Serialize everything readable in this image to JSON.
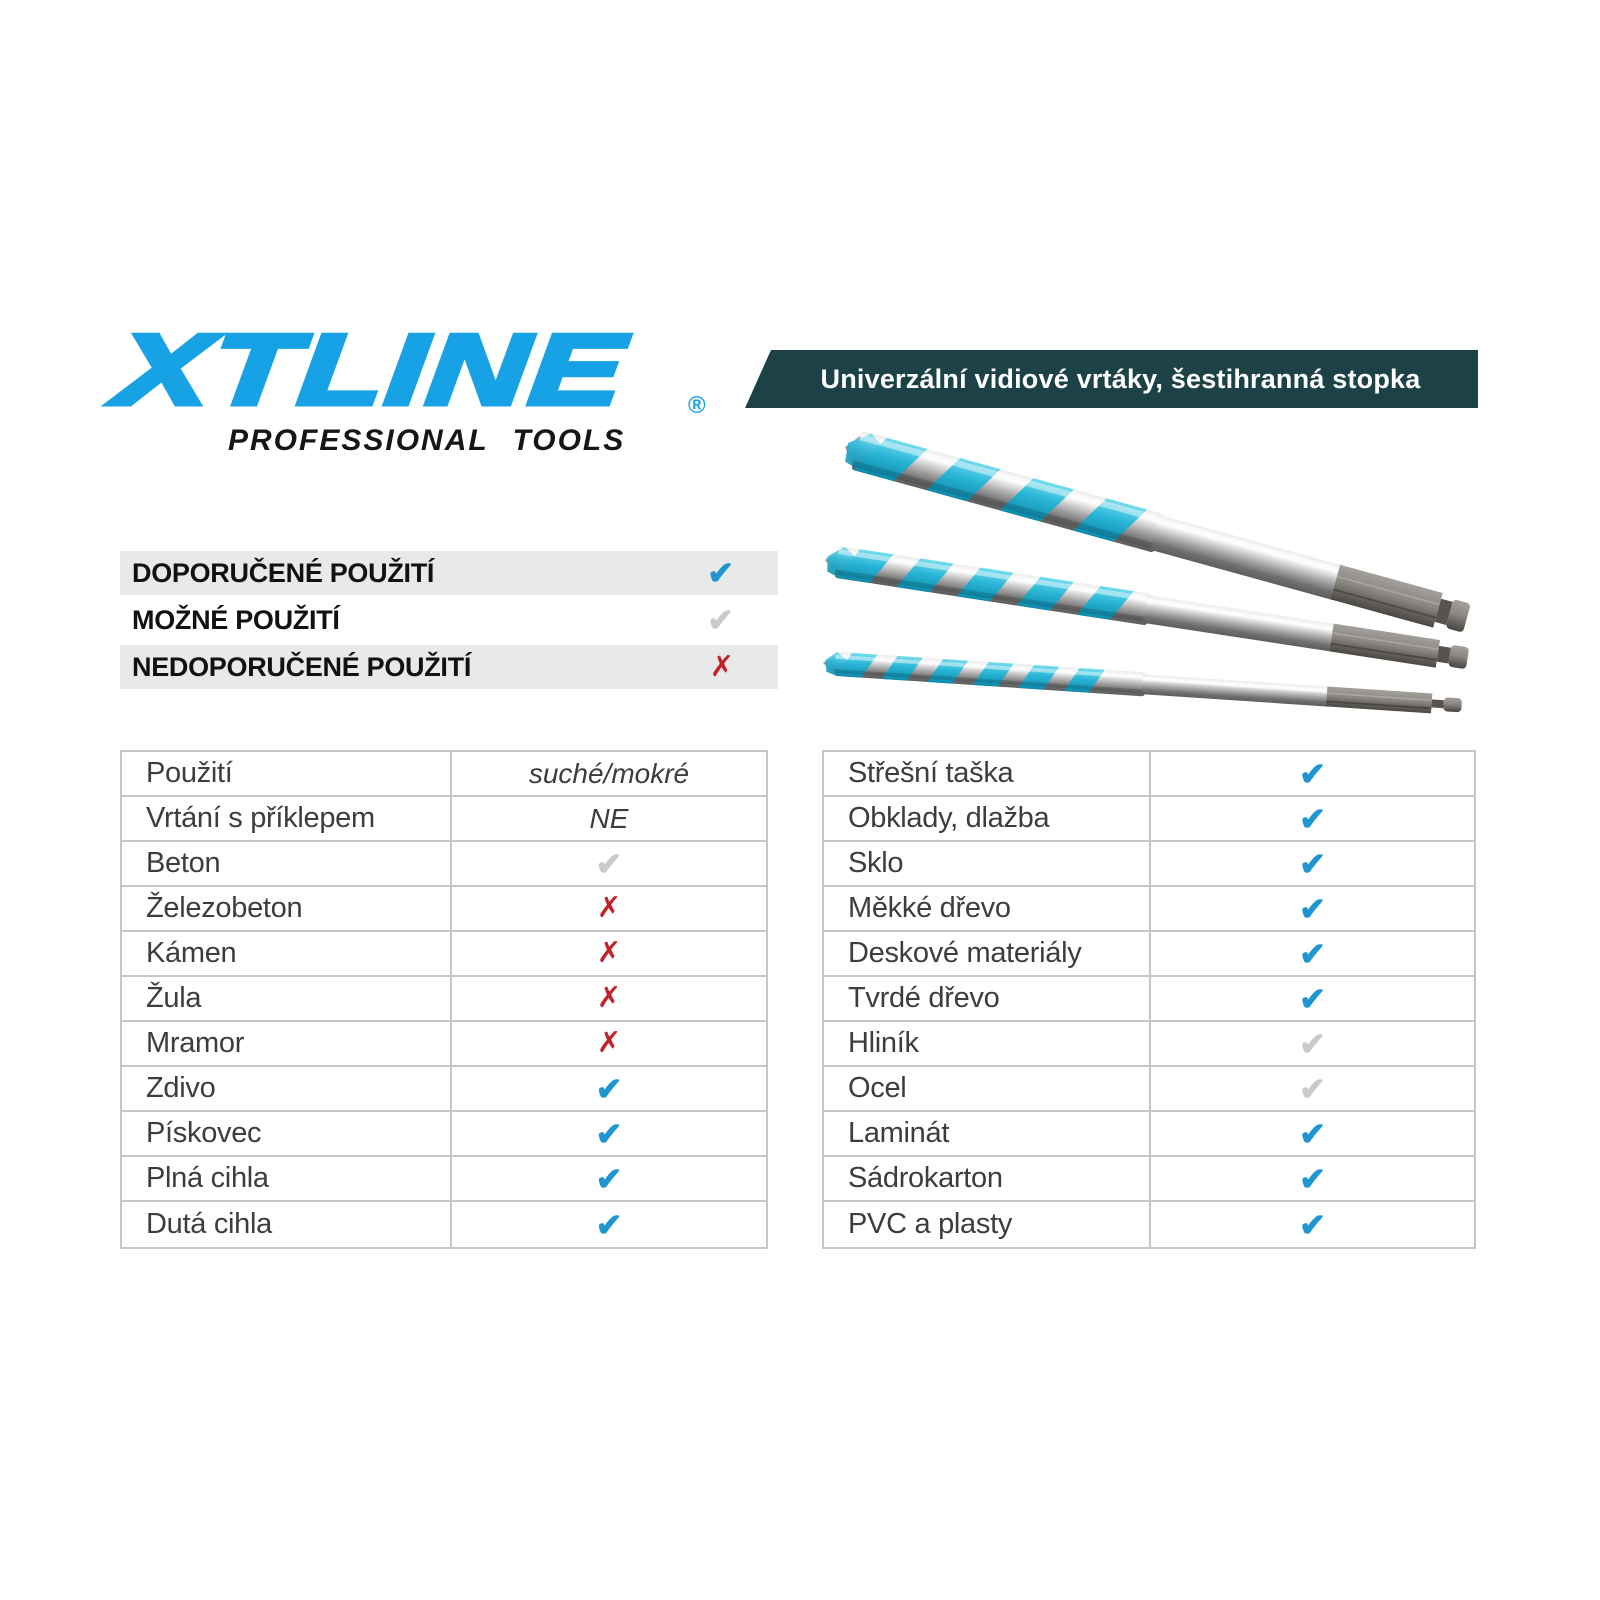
{
  "brand": {
    "logo_text": "XTLINE",
    "registered_mark": "®",
    "tagline": "PROFESSIONAL TOOLS"
  },
  "banner": {
    "title": "Univerzální vidiové vrtáky, šestihranná stopka"
  },
  "legend": {
    "items": [
      {
        "label": "DOPORUČENÉ POUŽITÍ",
        "mark": "blue"
      },
      {
        "label": "MOŽNÉ POUŽITÍ",
        "mark": "gray"
      },
      {
        "label": "NEDOPORUČENÉ POUŽITÍ",
        "mark": "red"
      }
    ]
  },
  "marks": {
    "check_glyph": "✔",
    "cross_glyph": "✗"
  },
  "tables": {
    "left": {
      "rows": [
        {
          "label": "Použití",
          "value": "suché/mokré"
        },
        {
          "label": "Vrtání s příklepem",
          "value": "NE"
        },
        {
          "label": "Beton",
          "mark": "gray"
        },
        {
          "label": "Železobeton",
          "mark": "red"
        },
        {
          "label": "Kámen",
          "mark": "red"
        },
        {
          "label": "Žula",
          "mark": "red"
        },
        {
          "label": "Mramor",
          "mark": "red"
        },
        {
          "label": "Zdivo",
          "mark": "blue"
        },
        {
          "label": "Pískovec",
          "mark": "blue"
        },
        {
          "label": "Plná cihla",
          "mark": "blue"
        },
        {
          "label": "Dutá cihla",
          "mark": "blue"
        }
      ]
    },
    "right": {
      "rows": [
        {
          "label": "Střešní taška",
          "mark": "blue"
        },
        {
          "label": "Obklady, dlažba",
          "mark": "blue"
        },
        {
          "label": "Sklo",
          "mark": "blue"
        },
        {
          "label": "Měkké dřevo",
          "mark": "blue"
        },
        {
          "label": "Deskové materiály",
          "mark": "blue"
        },
        {
          "label": "Tvrdé dřevo",
          "mark": "blue"
        },
        {
          "label": "Hliník",
          "mark": "gray"
        },
        {
          "label": "Ocel",
          "mark": "gray"
        },
        {
          "label": "Laminát",
          "mark": "blue"
        },
        {
          "label": "Sádrokarton",
          "mark": "blue"
        },
        {
          "label": "PVC a plasty",
          "mark": "blue"
        }
      ]
    }
  },
  "product_image": {
    "drill_count": 3
  },
  "colors": {
    "logo_blue": "#18a2e6",
    "banner_bg": "#1c4247",
    "banner_text": "#ffffff",
    "check_blue": "#1f96d2",
    "check_gray": "#c9cbcb",
    "cross_red": "#c2232b",
    "row_alt_bg": "#e9e9e9",
    "table_border": "#c6c6c6",
    "table_text": "#3d3d3d",
    "drill_accent": "#29b5d6"
  }
}
